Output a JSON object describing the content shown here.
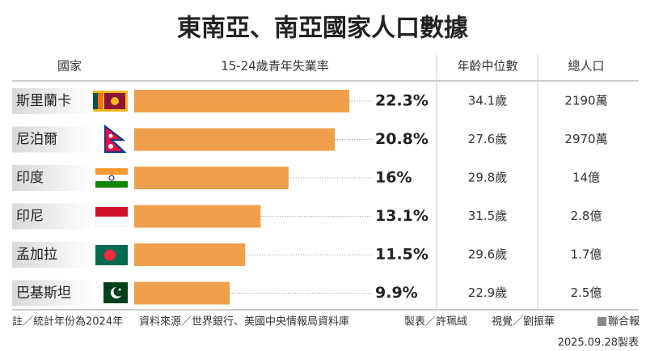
{
  "chart_data": {
    "type": "bar",
    "orientation": "horizontal",
    "title": "東南亞、南亞國家人口數據",
    "headers": [
      "國家",
      "15-24歲青年失業率",
      "年齡中位數",
      "總人口"
    ],
    "categories": [
      "斯里蘭卡",
      "尼泊爾",
      "印度",
      "印尼",
      "孟加拉",
      "巴基斯坦"
    ],
    "values": [
      22.3,
      20.8,
      16,
      13.1,
      11.5,
      9.9
    ],
    "value_labels": [
      "22.3%",
      "20.8%",
      "16%",
      "13.1%",
      "11.5%",
      "9.9%"
    ],
    "color": "#f0a04b",
    "median_age": [
      "34.1歲",
      "27.6歲",
      "29.8歲",
      "31.5歲",
      "29.6歲",
      "22.9歲"
    ],
    "population": [
      "2190萬",
      "2970萬",
      "14億",
      "2.8億",
      "1.7億",
      "2.5億"
    ],
    "footer": {
      "note": "註／統計年份為2024年",
      "source": "資料來源／世界銀行、美國中央情報局資料庫",
      "maker": "製表／許珮絨",
      "visual": "視覺／劉振華",
      "publisher": "聯合報",
      "date": "2025.09.28製表"
    }
  }
}
